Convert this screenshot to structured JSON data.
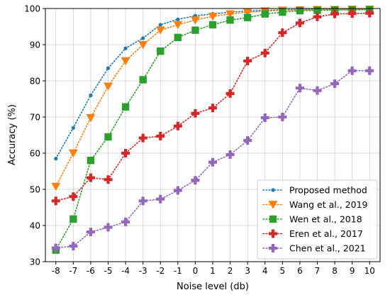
{
  "chart_data": {
    "type": "line",
    "xlabel": "Noise level (db)",
    "ylabel": "Accuracy (%)",
    "x": [
      -8,
      -7,
      -6,
      -5,
      -4,
      -3,
      -2,
      -1,
      0,
      1,
      2,
      3,
      4,
      5,
      6,
      7,
      8,
      9,
      10
    ],
    "xticks": [
      "-8",
      "-7",
      "-6",
      "-5",
      "-4",
      "-3",
      "-2",
      "-1",
      "0",
      "1",
      "2",
      "3",
      "4",
      "5",
      "6",
      "7",
      "8",
      "9",
      "10"
    ],
    "ylim": [
      30,
      100
    ],
    "yticks": [
      "30",
      "40",
      "50",
      "60",
      "70",
      "80",
      "90",
      "100"
    ],
    "grid": true,
    "legend_position": "bottom-right",
    "series": [
      {
        "name": "Proposed method",
        "color": "#1f77b4",
        "marker": "circle",
        "values": [
          58.5,
          67,
          76,
          83.5,
          89,
          91.8,
          95.5,
          97,
          98,
          98.5,
          99,
          99.3,
          99.5,
          99.6,
          99.7,
          99.8,
          99.8,
          99.9,
          99.9
        ]
      },
      {
        "name": "Wang et al., 2019",
        "color": "#ff7f0e",
        "marker": "triangle-down",
        "values": [
          50.8,
          60,
          69.8,
          78.5,
          85.5,
          90,
          94,
          95.5,
          96.8,
          97.8,
          98.5,
          99,
          99.3,
          99.5,
          99.6,
          99.7,
          99.7,
          99.8,
          99.8
        ]
      },
      {
        "name": "Wen et al., 2018",
        "color": "#2ca02c",
        "marker": "square",
        "values": [
          33.2,
          41.8,
          58,
          64.5,
          72.8,
          80.3,
          88.2,
          92,
          94,
          95.5,
          96.8,
          97.5,
          98.5,
          99,
          99.4,
          99.5,
          99.6,
          99.6,
          99.7
        ]
      },
      {
        "name": "Eren et al., 2017",
        "color": "#d62728",
        "marker": "plus",
        "values": [
          46.8,
          48,
          53.2,
          52.7,
          60,
          64.2,
          64.7,
          67.5,
          71,
          72.5,
          76.5,
          85.5,
          87.7,
          93.3,
          96,
          97.7,
          98.5,
          98.6,
          98.7
        ]
      },
      {
        "name": "Chen et al., 2021",
        "color": "#9467bd",
        "marker": "plus",
        "values": [
          33.8,
          34.3,
          38.2,
          39.5,
          41,
          46.8,
          47.3,
          49.7,
          52.5,
          57.5,
          59.6,
          63.5,
          69.8,
          70,
          78,
          77.3,
          79.2,
          82.8,
          82.8
        ]
      }
    ]
  }
}
